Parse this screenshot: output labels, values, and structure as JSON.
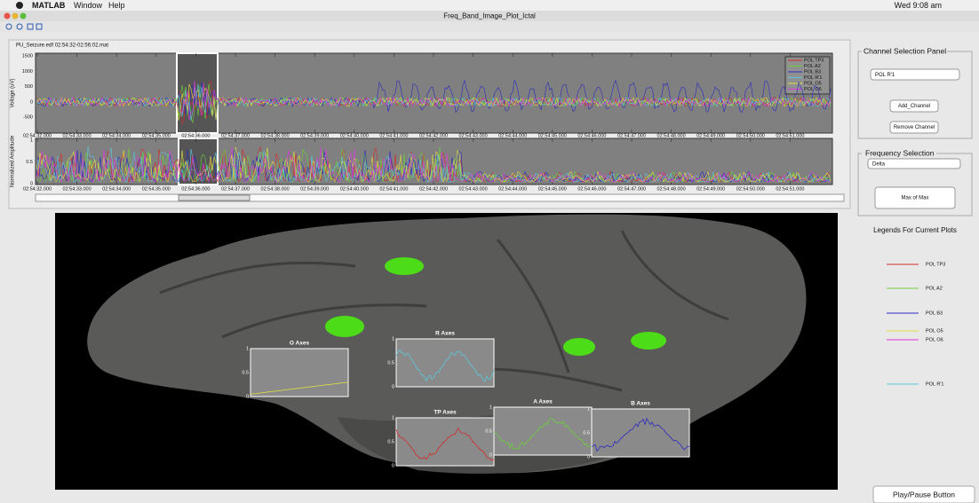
{
  "menu_bar": {
    "app": "MATLAB",
    "menus": [
      "Window",
      "Help"
    ],
    "clock": "Wed 9:08 am"
  },
  "window": {
    "title": "Freq_Band_Image_Plot_Ictal"
  },
  "file_label": "PU_Seizure.edf 02:54:32-02:56:02.mat",
  "voltage_plot": {
    "ylabel": "Voltage (uV)",
    "yticks": [
      1500,
      1000,
      500,
      0,
      -500
    ],
    "xticks": [
      "02:54:32.000",
      "02:54:33.000",
      "02:54:34.000",
      "02:54:35.000",
      "02:54:36.000",
      "02:54:37.000",
      "02:54:38.000",
      "02:54:39.000",
      "02:54:40.000",
      "02:54:41.000",
      "02:54:42.000",
      "02:54:43.000",
      "02:54:44.000",
      "02:54:45.000",
      "02:54:46.000",
      "02:54:47.000",
      "02:54:48.000",
      "02:54:49.000",
      "02:54:50.000",
      "02:54:51.000"
    ],
    "legend": [
      {
        "name": "POL TP3",
        "color": "#d42a2a"
      },
      {
        "name": "POL A2",
        "color": "#6ccf3a"
      },
      {
        "name": "POL B3",
        "color": "#2a2ac0"
      },
      {
        "name": "POL R'1",
        "color": "#5cc8dc"
      },
      {
        "name": "POL O5",
        "color": "#e0e040"
      },
      {
        "name": "POL O6",
        "color": "#dc3adc"
      }
    ]
  },
  "amplitude_plot": {
    "ylabel": "Normalized Amplitude",
    "yticks": [
      1,
      0.5,
      0
    ],
    "xticks": [
      "02:54:32.000",
      "02:54:33.000",
      "02:54:34.000",
      "02:54:35.000",
      "02:54:36.000",
      "02:54:37.000",
      "02:54:38.000",
      "02:54:39.000",
      "02:54:40.000",
      "02:54:41.000",
      "02:54:42.000",
      "02:54:43.000",
      "02:54:44.000",
      "02:54:45.000",
      "02:54:46.000",
      "02:54:47.000",
      "02:54:48.000",
      "02:54:49.000",
      "02:54:50.000",
      "02:54:51.000"
    ]
  },
  "channel_panel": {
    "title": "Channel Selection Panel",
    "selected": "POL R'1",
    "buttons": [
      "Add_Channel",
      "Remove Channel"
    ]
  },
  "frequency_panel": {
    "title": "Frequency Selection",
    "selected": "Delta",
    "button": "Max of Max"
  },
  "legend_panel": {
    "title": "Legends For Current Plots",
    "items": [
      {
        "label": "POL TP3",
        "color": "#d42a2a"
      },
      {
        "label": "POL A2",
        "color": "#6ccf3a"
      },
      {
        "label": "POL B3",
        "color": "#2a2ac0"
      },
      {
        "label": "POL O5",
        "color": "#e0e040"
      },
      {
        "label": "POL O6",
        "color": "#dc3adc"
      },
      {
        "label": "POL R'1",
        "color": "#5cc8dc"
      }
    ]
  },
  "mini_axes": [
    {
      "title": "O Axes",
      "yticks": [
        1,
        0.5,
        0
      ],
      "color": "#e0e040"
    },
    {
      "title": "R Axes",
      "yticks": [
        1,
        0.5,
        0
      ],
      "color": "#5cc8dc"
    },
    {
      "title": "TP Axes",
      "yticks": [
        1,
        0.5,
        0
      ],
      "color": "#d42a2a"
    },
    {
      "title": "A Axes",
      "yticks": [
        1,
        0.5,
        0
      ],
      "color": "#6ccf3a"
    },
    {
      "title": "B Axes",
      "yticks": [
        1,
        0.5,
        0
      ],
      "color": "#2a2ac0"
    }
  ],
  "play_button": "Play/Pause Button"
}
